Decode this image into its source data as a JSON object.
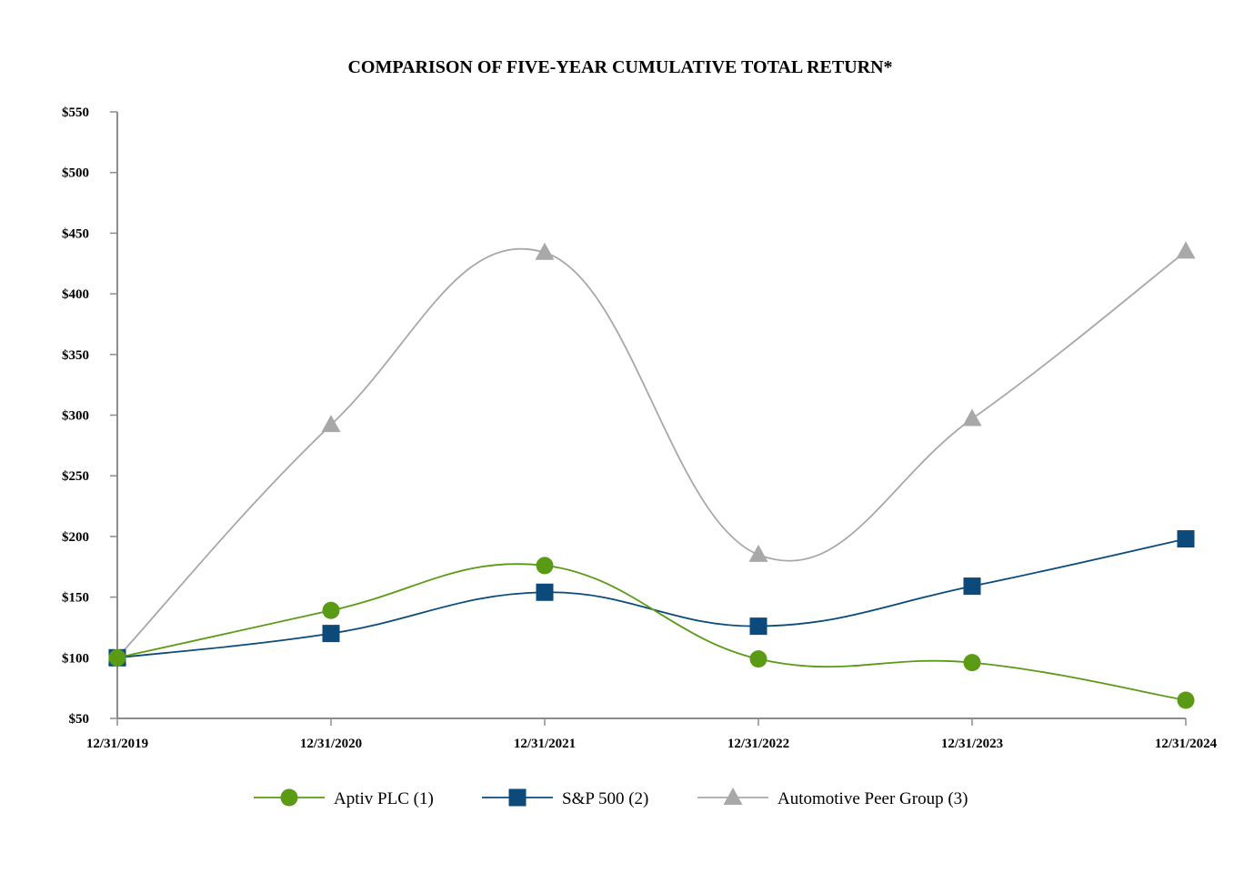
{
  "chart_data": {
    "type": "line",
    "title": "COMPARISON OF FIVE-YEAR CUMULATIVE TOTAL RETURN*",
    "xlabel": "",
    "ylabel": "",
    "categories": [
      "12/31/2019",
      "12/31/2020",
      "12/31/2021",
      "12/31/2022",
      "12/31/2023",
      "12/31/2024"
    ],
    "ylim": [
      50,
      550
    ],
    "yticks": [
      50,
      100,
      150,
      200,
      250,
      300,
      350,
      400,
      450,
      500,
      550
    ],
    "ytick_labels": [
      "$50",
      "$100",
      "$150",
      "$200",
      "$250",
      "$300",
      "$350",
      "$400",
      "$450",
      "$500",
      "$550"
    ],
    "grid": false,
    "legend_position": "bottom",
    "series": [
      {
        "name": "Aptiv PLC (1)",
        "color": "#5a9a14",
        "marker": "circle",
        "values": [
          100,
          139,
          176,
          99,
          96,
          65
        ]
      },
      {
        "name": "S&P 500 (2)",
        "color": "#0b4a7a",
        "marker": "square",
        "values": [
          100,
          120,
          154,
          126,
          159,
          198
        ]
      },
      {
        "name": "Automotive Peer Group (3)",
        "color": "#a8a8a8",
        "marker": "triangle",
        "values": [
          100,
          292,
          434,
          185,
          297,
          435
        ]
      }
    ],
    "axis_color": "#8c8c8c"
  }
}
